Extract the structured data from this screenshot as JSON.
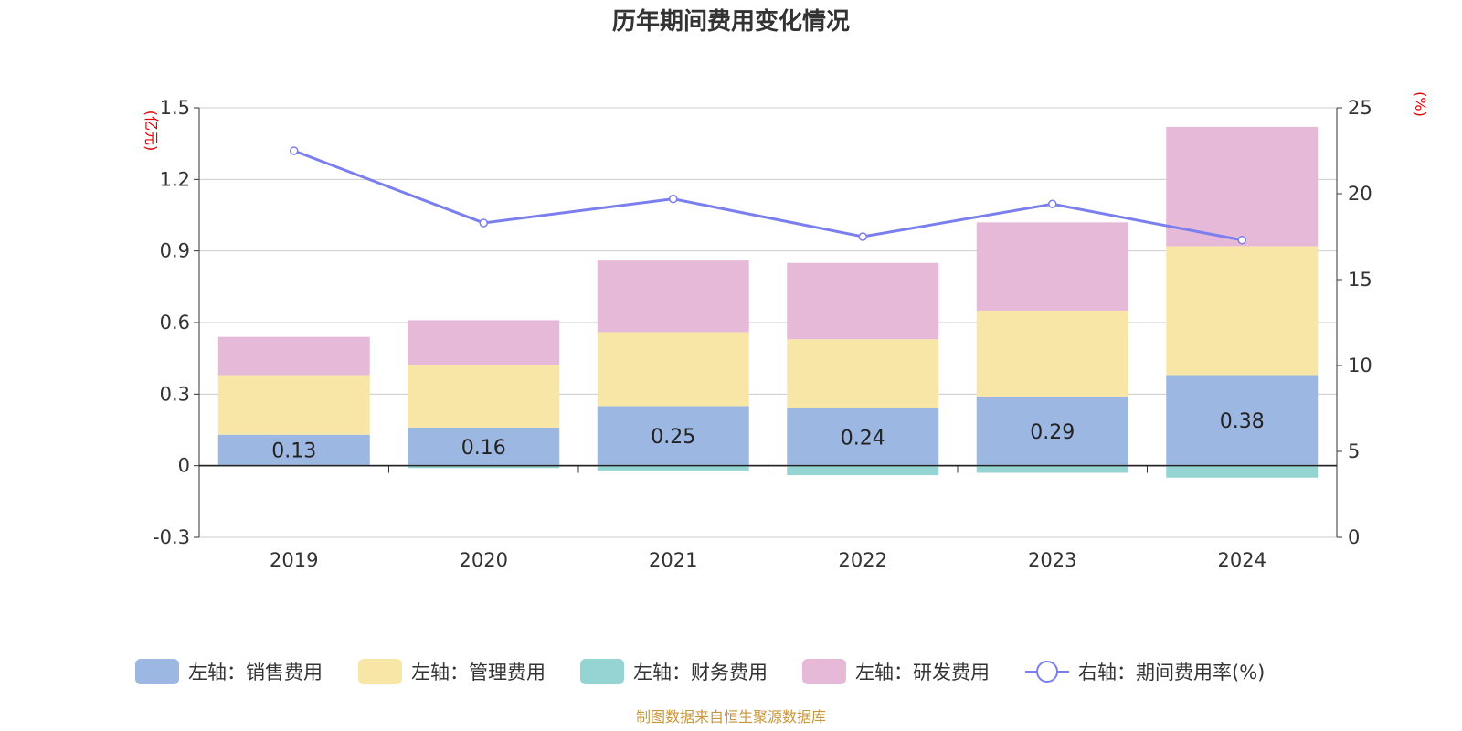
{
  "chart_data": {
    "type": "bar",
    "stacked": true,
    "title": "历年期间费用变化情况",
    "categories": [
      "2019",
      "2020",
      "2021",
      "2022",
      "2023",
      "2024"
    ],
    "left_axis": {
      "unit": "(亿元)",
      "ylim": [
        -0.3,
        1.5
      ],
      "ticks": [
        -0.3,
        0,
        0.3,
        0.6,
        0.9,
        1.2,
        1.5
      ],
      "tick_labels": [
        "-0.3",
        "0",
        "0.3",
        "0.6",
        "0.9",
        "1.2",
        "1.5"
      ]
    },
    "right_axis": {
      "unit": "(%)",
      "ylim": [
        0,
        25
      ],
      "ticks": [
        0,
        5,
        10,
        15,
        20,
        25
      ],
      "tick_labels": [
        "0",
        "5",
        "10",
        "15",
        "20",
        "25"
      ]
    },
    "series": [
      {
        "name": "左轴：销售费用",
        "axis": "left",
        "type": "bar",
        "color": "#9cb7e1",
        "values": [
          0.13,
          0.16,
          0.25,
          0.24,
          0.29,
          0.38
        ],
        "labels": [
          "0.13",
          "0.16",
          "0.25",
          "0.24",
          "0.29",
          "0.38"
        ]
      },
      {
        "name": "左轴：管理费用",
        "axis": "left",
        "type": "bar",
        "color": "#f8e6a6",
        "values": [
          0.25,
          0.26,
          0.31,
          0.29,
          0.36,
          0.54
        ]
      },
      {
        "name": "左轴：财务费用",
        "axis": "left",
        "type": "bar",
        "color": "#94d4d2",
        "values": [
          0.0,
          -0.01,
          -0.02,
          -0.04,
          -0.03,
          -0.05
        ]
      },
      {
        "name": "左轴：研发费用",
        "axis": "left",
        "type": "bar",
        "color": "#e7b9d9",
        "values": [
          0.16,
          0.19,
          0.3,
          0.32,
          0.37,
          0.5
        ]
      },
      {
        "name": "右轴：期间费用率(%)",
        "axis": "right",
        "type": "line",
        "color": "#7b7fee",
        "values": [
          22.5,
          18.3,
          19.7,
          17.5,
          19.4,
          17.3
        ]
      }
    ],
    "legend_position": "bottom-center",
    "grid": true
  },
  "footer": {
    "source": "制图数据来自恒生聚源数据库"
  }
}
